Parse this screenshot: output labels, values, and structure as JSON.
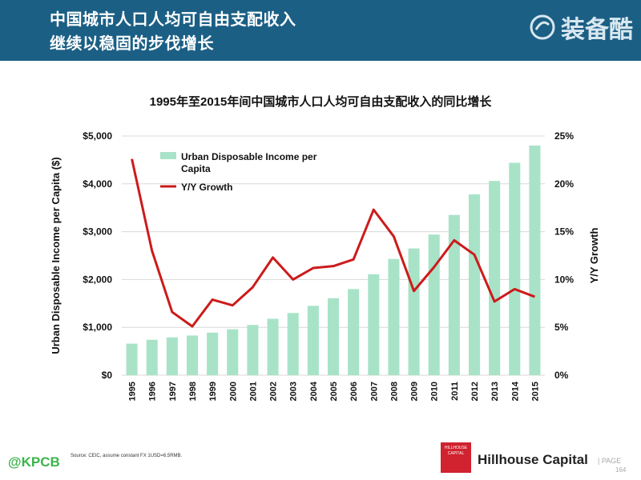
{
  "header": {
    "title_line1": "中国城市人口人均可自由支配收入",
    "title_line2": "继续以稳固的步伐增长",
    "brand_name": "装备酷",
    "brand_icon": "brand-swirl-icon",
    "bg_color": "#1b5f85"
  },
  "chart_data": {
    "type": "bar",
    "title": "1995年至2015年间中国城市人口人均可自由支配收入的同比增长",
    "categories": [
      "1995",
      "1996",
      "1997",
      "1998",
      "1999",
      "2000",
      "2001",
      "2002",
      "2003",
      "2004",
      "2005",
      "2006",
      "2007",
      "2008",
      "2009",
      "2010",
      "2011",
      "2012",
      "2013",
      "2014",
      "2015"
    ],
    "series": [
      {
        "name": "Urban Disposable Income per Capita",
        "type": "bar",
        "axis": "left",
        "color": "#a8e3c8",
        "values": [
          660,
          740,
          790,
          830,
          890,
          960,
          1050,
          1180,
          1300,
          1450,
          1610,
          1800,
          2110,
          2430,
          2650,
          2940,
          3350,
          3780,
          4060,
          4440,
          4800
        ]
      },
      {
        "name": "Y/Y Growth",
        "type": "line",
        "axis": "right",
        "color": "#cc1b1b",
        "values": [
          22.6,
          13.0,
          6.6,
          5.1,
          7.9,
          7.3,
          9.2,
          12.3,
          10.0,
          11.2,
          11.4,
          12.1,
          17.3,
          14.5,
          8.8,
          11.3,
          14.1,
          12.6,
          7.7,
          9.0,
          8.2
        ]
      }
    ],
    "ylabel_left": "Urban Disposable Income per Capita ($)",
    "ylabel_right": "Y/Y Growth",
    "ylim_left": [
      0,
      5000
    ],
    "ylim_right": [
      0,
      25
    ],
    "yticks_left": [
      "$0",
      "$1,000",
      "$2,000",
      "$3,000",
      "$4,000",
      "$5,000"
    ],
    "yticks_right": [
      "0%",
      "5%",
      "10%",
      "15%",
      "20%",
      "25%"
    ],
    "grid": true,
    "legend": "top-left"
  },
  "footer": {
    "handle": "@KPCB",
    "source": "Source: CEIC, assume constant FX 1USD=6.5RMB.",
    "logo_text": "HILLHOUSE CAPITAL",
    "firm_name": "Hillhouse Capital",
    "page_label": "| PAGE",
    "page_number": "164"
  }
}
